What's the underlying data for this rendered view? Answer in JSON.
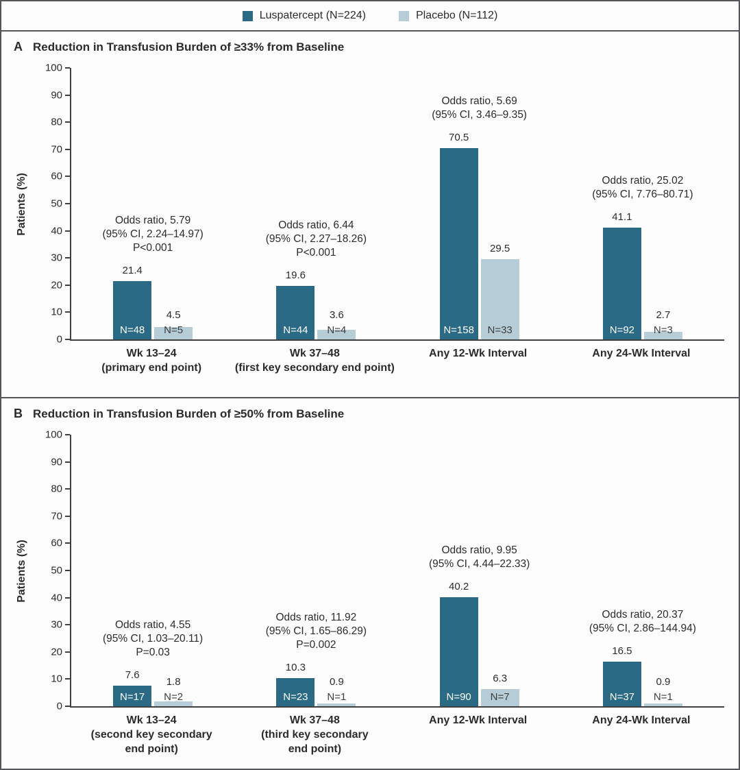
{
  "legend": {
    "items": [
      {
        "label": "Luspatercept (N=224)",
        "color": "#2a6a84"
      },
      {
        "label": "Placebo (N=112)",
        "color": "#b6ccd6"
      }
    ]
  },
  "colors": {
    "luspatercept_bar": "#2a6a84",
    "placebo_bar": "#b6ccd6",
    "axis": "#404040",
    "text": "#2b2b2b",
    "frame_border": "#55565a"
  },
  "chart_data": [
    {
      "type": "bar",
      "panel_letter": "A",
      "title": "Reduction in Transfusion Burden of ≥33% from Baseline",
      "ylabel": "Patients (%)",
      "ylim": [
        0,
        100
      ],
      "yticks": [
        0,
        10,
        20,
        30,
        40,
        50,
        60,
        70,
        80,
        90,
        100
      ],
      "grid": false,
      "legend_position": "top-center",
      "series_names": [
        "Luspatercept (N=224)",
        "Placebo (N=112)"
      ],
      "groups": [
        {
          "category": [
            "Wk 13–24",
            "(primary end point)"
          ],
          "values": {
            "luspatercept": 21.4,
            "placebo": 4.5
          },
          "n_labels": {
            "luspatercept": "N=48",
            "placebo": "N=5"
          },
          "annotation": [
            "Odds ratio, 5.79",
            "(95% CI, 2.24–14.97)",
            "P<0.001"
          ]
        },
        {
          "category": [
            "Wk 37–48",
            "(first key secondary end point)"
          ],
          "values": {
            "luspatercept": 19.6,
            "placebo": 3.6
          },
          "n_labels": {
            "luspatercept": "N=44",
            "placebo": "N=4"
          },
          "annotation": [
            "Odds ratio, 6.44",
            "(95% CI, 2.27–18.26)",
            "P<0.001"
          ]
        },
        {
          "category": [
            "Any 12-Wk Interval"
          ],
          "values": {
            "luspatercept": 70.5,
            "placebo": 29.5
          },
          "n_labels": {
            "luspatercept": "N=158",
            "placebo": "N=33"
          },
          "annotation": [
            "Odds ratio, 5.69",
            "(95% CI, 3.46–9.35)"
          ]
        },
        {
          "category": [
            "Any 24-Wk Interval"
          ],
          "values": {
            "luspatercept": 41.1,
            "placebo": 2.7
          },
          "n_labels": {
            "luspatercept": "N=92",
            "placebo": "N=3"
          },
          "annotation": [
            "Odds ratio, 25.02",
            "(95% CI, 7.76–80.71)"
          ]
        }
      ]
    },
    {
      "type": "bar",
      "panel_letter": "B",
      "title": "Reduction in Transfusion Burden of ≥50% from Baseline",
      "ylabel": "Patients (%)",
      "ylim": [
        0,
        100
      ],
      "yticks": [
        0,
        10,
        20,
        30,
        40,
        50,
        60,
        70,
        80,
        90,
        100
      ],
      "grid": false,
      "legend_position": "top-center",
      "series_names": [
        "Luspatercept (N=224)",
        "Placebo (N=112)"
      ],
      "groups": [
        {
          "category": [
            "Wk 13–24",
            "(second key secondary",
            "end point)"
          ],
          "values": {
            "luspatercept": 7.6,
            "placebo": 1.8
          },
          "n_labels": {
            "luspatercept": "N=17",
            "placebo": "N=2"
          },
          "annotation": [
            "Odds ratio, 4.55",
            "(95% CI, 1.03–20.11)",
            "P=0.03"
          ]
        },
        {
          "category": [
            "Wk 37–48",
            "(third key secondary",
            "end point)"
          ],
          "values": {
            "luspatercept": 10.3,
            "placebo": 0.9
          },
          "n_labels": {
            "luspatercept": "N=23",
            "placebo": "N=1"
          },
          "annotation": [
            "Odds ratio, 11.92",
            "(95% CI, 1.65–86.29)",
            "P=0.002"
          ]
        },
        {
          "category": [
            "Any 12-Wk Interval"
          ],
          "values": {
            "luspatercept": 40.2,
            "placebo": 6.3
          },
          "n_labels": {
            "luspatercept": "N=90",
            "placebo": "N=7"
          },
          "annotation": [
            "Odds ratio, 9.95",
            "(95% CI, 4.44–22.33)"
          ]
        },
        {
          "category": [
            "Any 24-Wk Interval"
          ],
          "values": {
            "luspatercept": 16.5,
            "placebo": 0.9
          },
          "n_labels": {
            "luspatercept": "N=37",
            "placebo": "N=1"
          },
          "annotation": [
            "Odds ratio, 20.37",
            "(95% CI, 2.86–144.94)"
          ]
        }
      ]
    }
  ]
}
